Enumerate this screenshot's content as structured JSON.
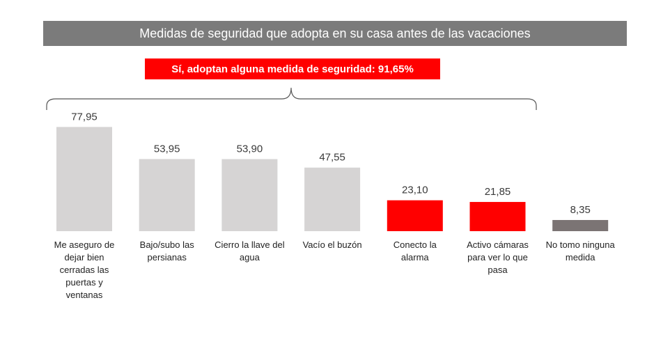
{
  "title": "Medidas de seguridad que adopta en su casa antes de las vacaciones",
  "callout": "Sí, adoptan alguna medida de seguridad: 91,65%",
  "colors": {
    "light": "#d6d4d4",
    "accent": "#ff0000",
    "dark": "#7b7474",
    "title_bg": "#7b7b7b"
  },
  "chart_data": {
    "type": "bar",
    "title": "Medidas de seguridad que adopta en su casa antes de las vacaciones",
    "categories": [
      "Me aseguro de dejar bien cerradas las puertas y ventanas",
      "Bajo/subo las persianas",
      "Cierro la llave del agua",
      "Vacío el buzón",
      "Conecto la alarma",
      "Activo cámaras para ver lo que pasa",
      "No tomo ninguna medida"
    ],
    "values": [
      77.95,
      53.95,
      53.9,
      47.55,
      23.1,
      21.85,
      8.35
    ],
    "value_labels": [
      "77,95",
      "53,95",
      "53,90",
      "47,55",
      "23,10",
      "21,85",
      "8,35"
    ],
    "category_lines": [
      [
        "Me aseguro de",
        "dejar bien",
        "cerradas las",
        "puertas y",
        "ventanas"
      ],
      [
        "Bajo/subo las",
        "persianas"
      ],
      [
        "Cierro la llave del",
        "agua"
      ],
      [
        "Vacío el buzón"
      ],
      [
        "Conecto la",
        "alarma"
      ],
      [
        "Activo cámaras",
        "para ver lo que",
        "pasa"
      ],
      [
        "No tomo ninguna",
        "medida"
      ]
    ],
    "bar_colors": [
      "light",
      "light",
      "light",
      "light",
      "accent",
      "accent",
      "dark"
    ],
    "xlabel": "",
    "ylabel": "",
    "ylim": [
      0,
      100
    ],
    "grid": false
  }
}
